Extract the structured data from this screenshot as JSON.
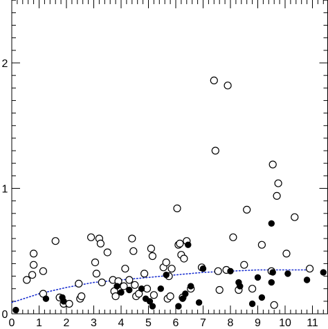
{
  "chart_data": {
    "type": "scatter",
    "xlim": [
      0,
      11.5
    ],
    "ylim": [
      0,
      2.5
    ],
    "x_ticks": [
      0,
      1,
      2,
      3,
      4,
      5,
      6,
      7,
      8,
      9,
      10,
      11
    ],
    "x_tick_labels": [
      "0",
      "1",
      "2",
      "3",
      "4",
      "5",
      "6",
      "7",
      "8",
      "9",
      "10",
      "11"
    ],
    "x_minor_step": 0.2,
    "y_ticks": [
      0,
      1,
      2
    ],
    "y_tick_labels": [
      "0",
      "1",
      "2"
    ],
    "y_minor_step": 0.1,
    "grid": false,
    "colors": {
      "axis": "#000000",
      "trend": "#1a2fd0"
    },
    "series": [
      {
        "marker": "open-circle",
        "points": [
          [
            0.55,
            0.27
          ],
          [
            0.75,
            0.31
          ],
          [
            0.8,
            0.39
          ],
          [
            0.8,
            0.48
          ],
          [
            1.15,
            0.34
          ],
          [
            1.15,
            0.16
          ],
          [
            1.6,
            0.58
          ],
          [
            1.75,
            0.13
          ],
          [
            1.9,
            0.08
          ],
          [
            2.1,
            0.08
          ],
          [
            2.45,
            0.24
          ],
          [
            2.5,
            0.12
          ],
          [
            2.55,
            0.14
          ],
          [
            2.9,
            0.61
          ],
          [
            3.05,
            0.41
          ],
          [
            3.1,
            0.32
          ],
          [
            3.2,
            0.6
          ],
          [
            3.25,
            0.56
          ],
          [
            3.3,
            0.25
          ],
          [
            3.5,
            0.49
          ],
          [
            3.7,
            0.27
          ],
          [
            3.75,
            0.18
          ],
          [
            3.8,
            0.14
          ],
          [
            3.9,
            0.26
          ],
          [
            4.1,
            0.22
          ],
          [
            4.15,
            0.36
          ],
          [
            4.3,
            0.27
          ],
          [
            4.4,
            0.6
          ],
          [
            4.45,
            0.5
          ],
          [
            4.5,
            0.23
          ],
          [
            4.55,
            0.14
          ],
          [
            4.65,
            0.16
          ],
          [
            4.85,
            0.32
          ],
          [
            4.95,
            0.2
          ],
          [
            5.1,
            0.52
          ],
          [
            5.15,
            0.46
          ],
          [
            5.2,
            0.15
          ],
          [
            5.55,
            0.37
          ],
          [
            5.65,
            0.41
          ],
          [
            5.7,
            0.12
          ],
          [
            5.75,
            0.3
          ],
          [
            5.8,
            0.14
          ],
          [
            5.85,
            0.36
          ],
          [
            6.05,
            0.84
          ],
          [
            6.1,
            0.55
          ],
          [
            6.15,
            0.56
          ],
          [
            6.2,
            0.47
          ],
          [
            6.25,
            0.13
          ],
          [
            6.3,
            0.44
          ],
          [
            6.4,
            0.58
          ],
          [
            6.55,
            0.2
          ],
          [
            6.95,
            0.37
          ],
          [
            7.4,
            1.86
          ],
          [
            7.45,
            1.3
          ],
          [
            7.55,
            0.34
          ],
          [
            7.6,
            0.19
          ],
          [
            7.85,
            0.35
          ],
          [
            7.9,
            1.82
          ],
          [
            8.1,
            0.61
          ],
          [
            8.3,
            0.19
          ],
          [
            8.5,
            0.39
          ],
          [
            8.6,
            0.83
          ],
          [
            8.8,
            0.2
          ],
          [
            9.15,
            0.55
          ],
          [
            9.5,
            0.34
          ],
          [
            9.55,
            1.19
          ],
          [
            9.6,
            0.07
          ],
          [
            9.7,
            0.94
          ],
          [
            9.75,
            1.04
          ],
          [
            10.05,
            0.48
          ],
          [
            10.35,
            0.77
          ],
          [
            10.9,
            0.36
          ]
        ]
      },
      {
        "marker": "filled-circle",
        "points": [
          [
            0.15,
            0.03
          ],
          [
            1.25,
            0.12
          ],
          [
            1.85,
            0.13
          ],
          [
            1.9,
            0.1
          ],
          [
            3.85,
            0.22
          ],
          [
            4.0,
            0.17
          ],
          [
            4.3,
            0.19
          ],
          [
            4.75,
            0.2
          ],
          [
            4.9,
            0.12
          ],
          [
            5.05,
            0.1
          ],
          [
            5.15,
            0.06
          ],
          [
            5.45,
            0.2
          ],
          [
            5.65,
            0.31
          ],
          [
            6.1,
            0.06
          ],
          [
            6.25,
            0.12
          ],
          [
            6.35,
            0.16
          ],
          [
            6.55,
            0.22
          ],
          [
            6.45,
            0.55
          ],
          [
            6.85,
            0.09
          ],
          [
            7.0,
            0.36
          ],
          [
            8.0,
            0.34
          ],
          [
            8.3,
            0.25
          ],
          [
            8.35,
            0.22
          ],
          [
            8.8,
            0.08
          ],
          [
            9.0,
            0.29
          ],
          [
            9.15,
            0.13
          ],
          [
            9.5,
            0.25
          ],
          [
            9.55,
            0.33
          ],
          [
            9.5,
            0.72
          ],
          [
            10.1,
            0.32
          ],
          [
            10.8,
            0.27
          ],
          [
            11.4,
            0.33
          ]
        ]
      },
      {
        "marker": "dotted-line",
        "points": [
          [
            0,
            0.09
          ],
          [
            1,
            0.16
          ],
          [
            2,
            0.21
          ],
          [
            3,
            0.25
          ],
          [
            4,
            0.27
          ],
          [
            5,
            0.29
          ],
          [
            6,
            0.31
          ],
          [
            7,
            0.33
          ],
          [
            8,
            0.34
          ],
          [
            9,
            0.35
          ],
          [
            10,
            0.35
          ],
          [
            11,
            0.35
          ]
        ]
      }
    ]
  }
}
